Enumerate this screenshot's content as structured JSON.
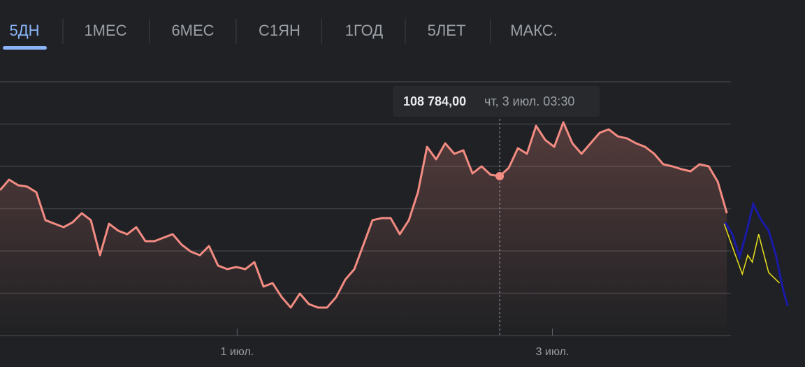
{
  "tabs": [
    "5ДН",
    "1МЕС",
    "6МЕС",
    "С1ЯН",
    "1ГОД",
    "5ЛЕТ",
    "МАКС."
  ],
  "chart_data": {
    "type": "line",
    "color": "#f28b82",
    "x": [
      0,
      1,
      2,
      3,
      4,
      5,
      6,
      7,
      8,
      9,
      10,
      11,
      12,
      13,
      14,
      15,
      16,
      17,
      18,
      19,
      20,
      21,
      22,
      23,
      24,
      25,
      26,
      27,
      28,
      29,
      30,
      31,
      32,
      33,
      34,
      35,
      36,
      37,
      38,
      39,
      40,
      41,
      42,
      43,
      44,
      45,
      46,
      47,
      48,
      49,
      50,
      51,
      52,
      53,
      54,
      55,
      56,
      57,
      58,
      59,
      60,
      61,
      62,
      63,
      64,
      65,
      66,
      67,
      68,
      69,
      70,
      71,
      72,
      73,
      74,
      75,
      76,
      77,
      78,
      79,
      80
    ],
    "values": [
      108619,
      108743,
      108677,
      108660,
      108594,
      108264,
      108222,
      108181,
      108239,
      108346,
      108264,
      107850,
      108222,
      108140,
      108098,
      108181,
      108016,
      108016,
      108057,
      108098,
      107974,
      107892,
      107850,
      107958,
      107727,
      107685,
      107710,
      107685,
      107768,
      107479,
      107520,
      107355,
      107231,
      107396,
      107272,
      107231,
      107231,
      107355,
      107561,
      107685,
      107974,
      108264,
      108288,
      108288,
      108098,
      108264,
      108594,
      109131,
      108983,
      109173,
      109049,
      109090,
      108817,
      108900,
      108801,
      108784,
      108883,
      109115,
      109049,
      109379,
      109214,
      109131,
      109421,
      109173,
      109049,
      109173,
      109297,
      109338,
      109255,
      109231,
      109173,
      109131,
      109049,
      108925,
      108900,
      108867,
      108842,
      108925,
      108900,
      108718,
      108346
    ],
    "xlim": [
      0,
      88.6
    ],
    "ylim": [
      106900,
      109900
    ],
    "yticks": [
      106900,
      107400,
      107900,
      108400,
      108900,
      109400,
      109900
    ],
    "xticks": [
      {
        "value": 26.1,
        "label": "1 июл."
      },
      {
        "value": 60.8,
        "label": "3 июл."
      }
    ],
    "grid": true,
    "tooltip": {
      "x": 55,
      "value_label": "108 784,00",
      "time": "чт, 3 июл. 03:30"
    },
    "overlays": [
      {
        "color": "#1a1aa8",
        "x": [
          79.8,
          80.6,
          81.4,
          82.2,
          82.9,
          83.8,
          84.6,
          85.4,
          86.2,
          86.7
        ],
        "values": [
          108239,
          108098,
          107826,
          108140,
          108454,
          108264,
          108140,
          107850,
          107437,
          107247
        ]
      },
      {
        "color": "#e8e020",
        "x": [
          79.7,
          80.8,
          81.7,
          82.3,
          82.8,
          83.5,
          84.2,
          84.6,
          85.8
        ],
        "values": [
          108222,
          107892,
          107627,
          107850,
          107768,
          108098,
          107809,
          107644,
          107520
        ]
      }
    ]
  }
}
